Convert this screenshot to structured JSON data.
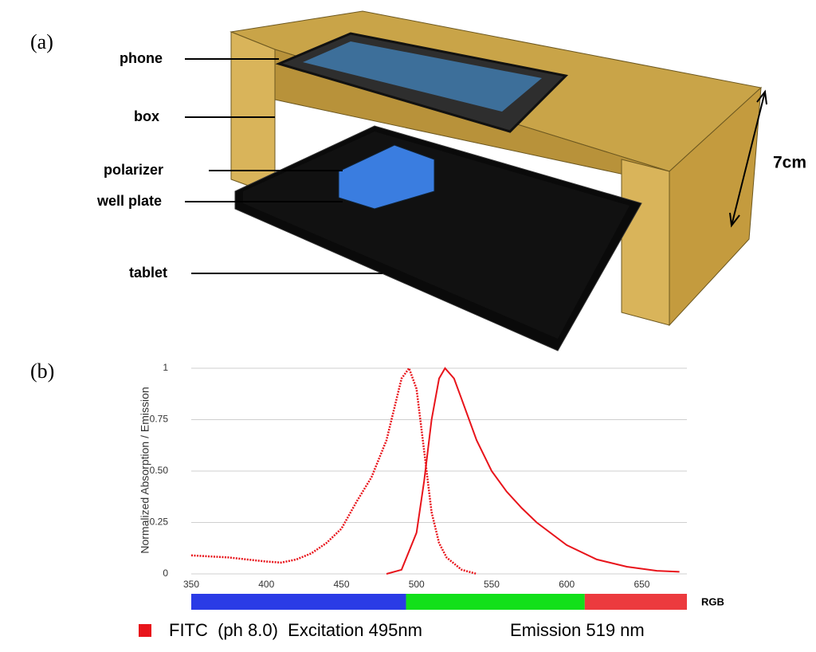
{
  "panel_a": {
    "label": "(a)",
    "parts": [
      "phone",
      "box",
      "polarizer",
      "well plate",
      "tablet"
    ],
    "height_label": "7cm"
  },
  "panel_b": {
    "label": "(b)"
  },
  "chart_data": {
    "type": "line",
    "y_label": "Normalized Absorption / Emission",
    "xlim": [
      350,
      680
    ],
    "xticks": [
      350,
      400,
      450,
      500,
      550,
      600,
      650
    ],
    "ylim": [
      0,
      1
    ],
    "yticks": [
      0,
      0.25,
      {
        "value": 0.5,
        "label": "0.50"
      },
      0.75,
      1
    ],
    "grid": true,
    "series": [
      {
        "color": "#e8141b",
        "dashed": true,
        "x": [
          350,
          375,
          400,
          410,
          420,
          430,
          440,
          450,
          460,
          470,
          480,
          490,
          495,
          500,
          505,
          510,
          515,
          520,
          530,
          540
        ],
        "values": [
          0.09,
          0.08,
          0.06,
          0.055,
          0.07,
          0.1,
          0.15,
          0.22,
          0.35,
          0.47,
          0.65,
          0.95,
          1,
          0.9,
          0.6,
          0.3,
          0.15,
          0.08,
          0.02,
          0
        ]
      },
      {
        "color": "#e8141b",
        "dashed": false,
        "x": [
          480,
          490,
          500,
          505,
          510,
          515,
          519,
          525,
          530,
          540,
          550,
          560,
          570,
          580,
          600,
          620,
          640,
          660,
          675
        ],
        "values": [
          0,
          0.02,
          0.2,
          0.45,
          0.75,
          0.95,
          1,
          0.95,
          0.85,
          0.65,
          0.5,
          0.4,
          0.32,
          0.25,
          0.14,
          0.07,
          0.035,
          0.015,
          0.01
        ]
      }
    ],
    "color_bar": {
      "label": "RGB",
      "bands": [
        {
          "start": 350,
          "end": 493,
          "color": "#2a3be6"
        },
        {
          "start": 493,
          "end": 612,
          "color": "#12e01a"
        },
        {
          "start": 612,
          "end": 680,
          "color": "#ec3a3e"
        }
      ]
    },
    "legend": {
      "color": "#e8141b",
      "labels": [
        "FITC  (ph 8.0)  Excitation 495nm",
        "Emission 519 nm"
      ]
    }
  }
}
